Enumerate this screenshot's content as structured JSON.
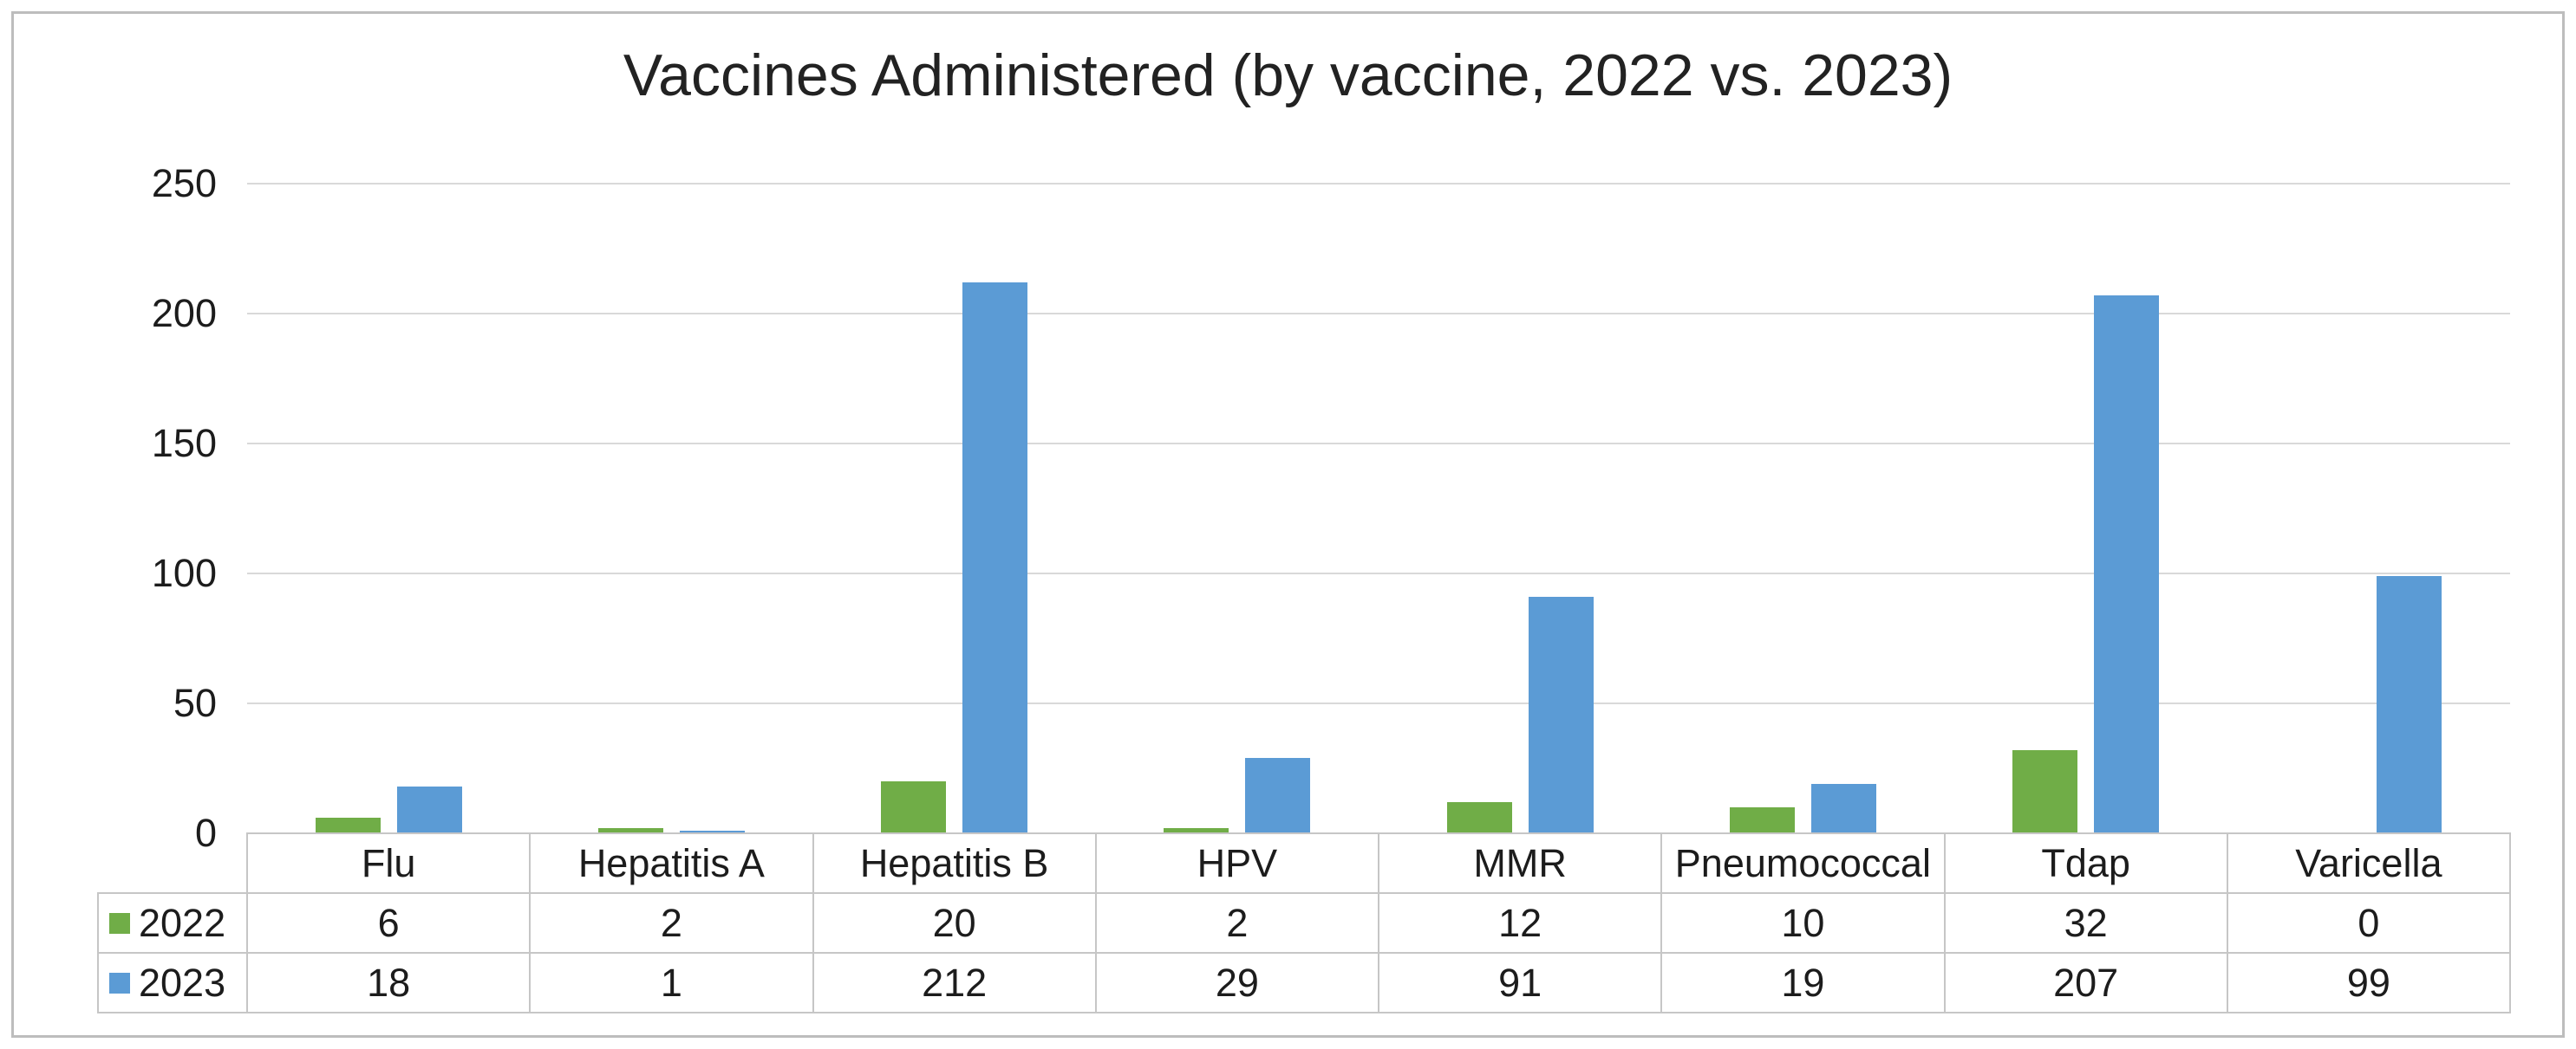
{
  "chart_data": {
    "type": "bar",
    "title": "Vaccines Administered (by vaccine, 2022 vs. 2023)",
    "categories": [
      "Flu",
      "Hepatitis A",
      "Hepatitis B",
      "HPV",
      "MMR",
      "Pneumococcal",
      "Tdap",
      "Varicella"
    ],
    "series": [
      {
        "name": "2022",
        "color": "#70AD47",
        "values": [
          6,
          2,
          20,
          2,
          12,
          10,
          32,
          0
        ]
      },
      {
        "name": "2023",
        "color": "#5B9BD5",
        "values": [
          18,
          1,
          212,
          29,
          91,
          19,
          207,
          99
        ]
      }
    ],
    "ylim": [
      0,
      250
    ],
    "yticks": [
      0,
      50,
      100,
      150,
      200,
      250
    ],
    "grid": true,
    "legend_position": "data-table-row-headers",
    "data_table_shown": true,
    "xlabel": "",
    "ylabel": ""
  },
  "colors": {
    "series_2022": "#70AD47",
    "series_2023": "#5B9BD5",
    "gridline": "#d9d9d9",
    "table_border": "#c6c6c6",
    "frame_border": "#bdbdbd",
    "text": "#1c1c1c"
  }
}
